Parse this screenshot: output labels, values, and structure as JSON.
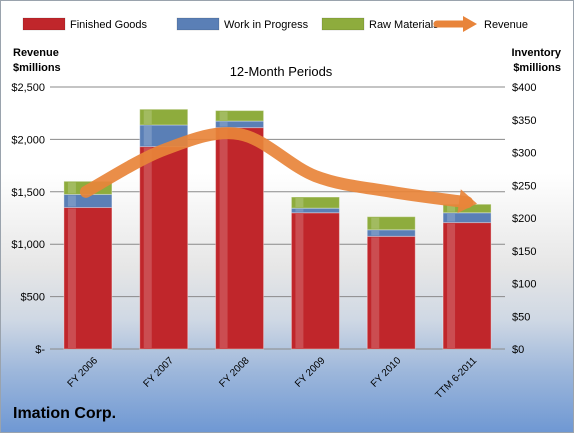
{
  "company": "Imation Corp.",
  "chart_data": {
    "type": "bar",
    "subtitle": "12-Month Periods",
    "categories": [
      "FY 2006",
      "FY 2007",
      "FY 2008",
      "FY 2009",
      "FY 2010",
      "TTM 6-2011"
    ],
    "left_axis": {
      "label_line1": "Revenue",
      "label_line2": "$millions",
      "ticks": [
        "$-",
        "$500",
        "$1,000",
        "$1,500",
        "$2,000",
        "$2,500"
      ],
      "ylim": [
        0,
        2500
      ]
    },
    "right_axis": {
      "label_line1": "Inventory",
      "label_line2": "$millions",
      "ticks": [
        "$0",
        "$50",
        "$100",
        "$150",
        "$200",
        "$250",
        "$300",
        "$350",
        "$400"
      ],
      "ylim": [
        0,
        400
      ]
    },
    "stacked_series": [
      {
        "name": "Finished Goods",
        "axis": "right",
        "color": "#c0262b",
        "values": [
          216,
          309,
          338,
          208,
          172,
          193
        ]
      },
      {
        "name": "Work in Progress",
        "axis": "right",
        "color": "#5a7fb6",
        "values": [
          20,
          33,
          10,
          7,
          10,
          15
        ]
      },
      {
        "name": "Raw Materials",
        "axis": "right",
        "color": "#8eac3d",
        "values": [
          20,
          24,
          16,
          17,
          20,
          13
        ]
      }
    ],
    "line_series": {
      "name": "Revenue",
      "axis": "left",
      "color": "#e8843a",
      "values": [
        1500,
        1900,
        2050,
        1650,
        1500,
        1400
      ]
    },
    "legend_position": "top",
    "grid": true
  }
}
